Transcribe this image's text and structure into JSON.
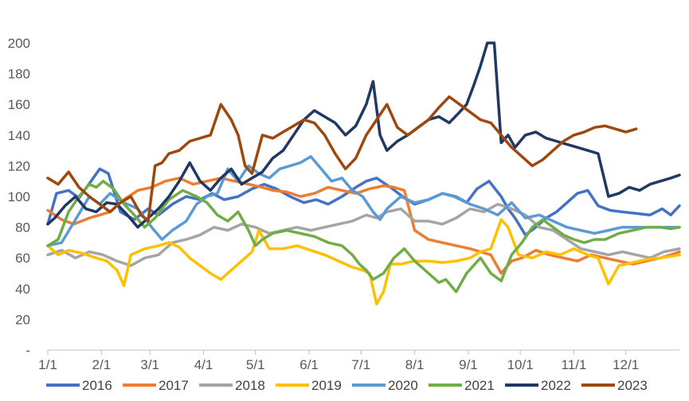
{
  "chart_data": {
    "type": "line",
    "title": "",
    "xlabel": "",
    "ylabel": "",
    "ylim": [
      0,
      200
    ],
    "y_ticks": [
      {
        "value": 0,
        "label": "-"
      },
      {
        "value": 20,
        "label": "20"
      },
      {
        "value": 40,
        "label": "40"
      },
      {
        "value": 60,
        "label": "60"
      },
      {
        "value": 80,
        "label": "80"
      },
      {
        "value": 100,
        "label": "100"
      },
      {
        "value": 120,
        "label": "120"
      },
      {
        "value": 140,
        "label": "140"
      },
      {
        "value": 160,
        "label": "160"
      },
      {
        "value": 180,
        "label": "180"
      },
      {
        "value": 200,
        "label": "200"
      }
    ],
    "x_range": [
      0,
      365
    ],
    "x_ticks": [
      {
        "value": 0,
        "label": "1/1"
      },
      {
        "value": 31,
        "label": "2/1"
      },
      {
        "value": 59,
        "label": "3/1"
      },
      {
        "value": 90,
        "label": "4/1"
      },
      {
        "value": 120,
        "label": "5/1"
      },
      {
        "value": 151,
        "label": "6/1"
      },
      {
        "value": 181,
        "label": "7/1"
      },
      {
        "value": 212,
        "label": "8/1"
      },
      {
        "value": 243,
        "label": "9/1"
      },
      {
        "value": 273,
        "label": "10/1"
      },
      {
        "value": 304,
        "label": "11/1"
      },
      {
        "value": 334,
        "label": "12/1"
      }
    ],
    "grid": false,
    "legend_position": "bottom",
    "series": [
      {
        "name": "2016",
        "color": "#4472C4",
        "x": [
          0,
          5,
          12,
          18,
          25,
          30,
          35,
          42,
          50,
          58,
          64,
          72,
          80,
          88,
          95,
          102,
          110,
          118,
          125,
          132,
          140,
          148,
          155,
          162,
          170,
          178,
          184,
          190,
          198,
          205,
          212,
          220,
          228,
          235,
          242,
          248,
          255,
          262,
          266,
          270,
          276,
          282,
          288,
          294,
          300,
          306,
          312,
          318,
          325,
          332,
          340,
          348,
          355,
          360,
          365
        ],
        "y": [
          82,
          102,
          104,
          99,
          110,
          118,
          115,
          90,
          85,
          92,
          88,
          95,
          100,
          98,
          102,
          98,
          100,
          105,
          108,
          105,
          100,
          96,
          98,
          95,
          100,
          106,
          110,
          112,
          106,
          100,
          95,
          98,
          102,
          100,
          96,
          105,
          110,
          100,
          92,
          86,
          75,
          80,
          86,
          90,
          96,
          102,
          104,
          94,
          91,
          90,
          89,
          88,
          92,
          88,
          94
        ]
      },
      {
        "name": "2017",
        "color": "#ED7D31",
        "x": [
          0,
          8,
          15,
          24,
          30,
          36,
          44,
          52,
          60,
          68,
          76,
          84,
          92,
          100,
          108,
          116,
          124,
          130,
          138,
          146,
          154,
          162,
          170,
          178,
          186,
          194,
          200,
          206,
          212,
          220,
          228,
          236,
          244,
          250,
          256,
          262,
          268,
          274,
          282,
          290,
          298,
          306,
          314,
          322,
          330,
          338,
          346,
          354,
          360,
          365
        ],
        "y": [
          91,
          85,
          82,
          86,
          88,
          90,
          98,
          104,
          106,
          110,
          112,
          108,
          110,
          112,
          110,
          108,
          106,
          104,
          103,
          100,
          102,
          106,
          104,
          102,
          105,
          107,
          106,
          104,
          78,
          72,
          70,
          68,
          66,
          64,
          62,
          50,
          58,
          60,
          65,
          62,
          60,
          58,
          62,
          60,
          58,
          56,
          58,
          60,
          62,
          64
        ]
      },
      {
        "name": "2018",
        "color": "#A5A5A5",
        "x": [
          0,
          8,
          16,
          24,
          32,
          40,
          48,
          56,
          64,
          72,
          80,
          88,
          96,
          104,
          112,
          120,
          128,
          136,
          144,
          152,
          160,
          168,
          176,
          184,
          190,
          196,
          204,
          212,
          220,
          228,
          236,
          244,
          252,
          260,
          268,
          276,
          284,
          292,
          300,
          308,
          316,
          324,
          332,
          340,
          348,
          356,
          365
        ],
        "y": [
          62,
          65,
          60,
          64,
          62,
          58,
          55,
          60,
          62,
          70,
          72,
          75,
          80,
          78,
          82,
          80,
          76,
          78,
          80,
          78,
          80,
          82,
          84,
          88,
          86,
          90,
          92,
          84,
          84,
          82,
          86,
          92,
          90,
          95,
          92,
          88,
          80,
          78,
          72,
          66,
          64,
          62,
          64,
          62,
          60,
          64,
          66
        ]
      },
      {
        "name": "2019",
        "color": "#FFC000",
        "x": [
          0,
          6,
          12,
          20,
          28,
          34,
          40,
          44,
          48,
          56,
          64,
          70,
          76,
          82,
          88,
          94,
          100,
          106,
          112,
          118,
          122,
          128,
          136,
          144,
          152,
          160,
          168,
          176,
          182,
          186,
          190,
          194,
          198,
          204,
          212,
          220,
          228,
          236,
          244,
          250,
          256,
          262,
          266,
          272,
          280,
          288,
          296,
          304,
          312,
          318,
          324,
          330,
          338,
          346,
          354,
          360,
          365
        ],
        "y": [
          68,
          62,
          65,
          63,
          60,
          58,
          52,
          42,
          62,
          66,
          68,
          70,
          67,
          60,
          55,
          50,
          46,
          52,
          58,
          64,
          78,
          66,
          66,
          68,
          65,
          62,
          58,
          54,
          52,
          50,
          30,
          38,
          56,
          56,
          58,
          58,
          57,
          58,
          60,
          64,
          66,
          85,
          80,
          62,
          60,
          64,
          62,
          66,
          62,
          60,
          43,
          55,
          57,
          59,
          60,
          61,
          62
        ]
      },
      {
        "name": "2020",
        "color": "#5B9BD5",
        "x": [
          0,
          8,
          16,
          24,
          30,
          36,
          44,
          52,
          60,
          66,
          72,
          80,
          86,
          92,
          98,
          104,
          110,
          116,
          122,
          128,
          134,
          140,
          146,
          152,
          158,
          164,
          170,
          176,
          182,
          188,
          192,
          196,
          204,
          212,
          220,
          228,
          236,
          244,
          252,
          260,
          268,
          276,
          284,
          292,
          300,
          308,
          316,
          324,
          332,
          340,
          348,
          356,
          365
        ],
        "y": [
          68,
          70,
          85,
          100,
          95,
          102,
          96,
          92,
          80,
          72,
          78,
          84,
          95,
          100,
          102,
          118,
          110,
          120,
          115,
          112,
          118,
          120,
          122,
          126,
          118,
          110,
          112,
          104,
          100,
          90,
          85,
          92,
          100,
          96,
          98,
          102,
          100,
          95,
          92,
          88,
          96,
          86,
          88,
          84,
          80,
          78,
          76,
          78,
          80,
          80,
          80,
          80,
          80
        ]
      },
      {
        "name": "2021",
        "color": "#70AD47",
        "x": [
          0,
          6,
          12,
          18,
          24,
          28,
          32,
          38,
          44,
          50,
          56,
          62,
          70,
          78,
          86,
          92,
          98,
          104,
          110,
          116,
          120,
          124,
          130,
          138,
          146,
          154,
          162,
          170,
          176,
          180,
          184,
          188,
          194,
          200,
          206,
          212,
          220,
          226,
          230,
          236,
          242,
          250,
          256,
          262,
          268,
          274,
          280,
          286,
          292,
          298,
          304,
          310,
          316,
          322,
          330,
          338,
          346,
          354,
          360,
          365
        ],
        "y": [
          68,
          72,
          90,
          100,
          108,
          106,
          110,
          105,
          95,
          88,
          80,
          86,
          98,
          104,
          100,
          96,
          88,
          84,
          90,
          78,
          68,
          72,
          76,
          78,
          76,
          74,
          70,
          68,
          62,
          56,
          52,
          46,
          50,
          60,
          66,
          58,
          50,
          44,
          46,
          38,
          50,
          60,
          50,
          45,
          62,
          70,
          80,
          85,
          80,
          75,
          72,
          70,
          72,
          72,
          76,
          78,
          80,
          80,
          79,
          80
        ]
      },
      {
        "name": "2022",
        "color": "#203864",
        "x": [
          0,
          4,
          10,
          16,
          22,
          28,
          34,
          40,
          46,
          52,
          58,
          64,
          70,
          76,
          82,
          88,
          94,
          100,
          106,
          112,
          118,
          124,
          130,
          136,
          142,
          148,
          154,
          160,
          166,
          172,
          178,
          184,
          188,
          192,
          196,
          202,
          208,
          214,
          220,
          226,
          232,
          238,
          242,
          246,
          250,
          254,
          258,
          262,
          266,
          270,
          276,
          282,
          288,
          294,
          300,
          306,
          312,
          318,
          324,
          330,
          336,
          342,
          348,
          354,
          360,
          365
        ],
        "y": [
          82,
          86,
          94,
          100,
          92,
          90,
          96,
          95,
          88,
          80,
          86,
          92,
          100,
          110,
          122,
          110,
          104,
          112,
          118,
          108,
          112,
          116,
          125,
          130,
          140,
          150,
          156,
          152,
          148,
          140,
          146,
          160,
          175,
          140,
          130,
          136,
          140,
          145,
          150,
          152,
          148,
          155,
          160,
          172,
          185,
          200,
          210,
          135,
          140,
          132,
          140,
          142,
          138,
          136,
          134,
          132,
          130,
          128,
          100,
          102,
          106,
          104,
          108,
          110,
          112,
          114
        ]
      },
      {
        "name": "2023",
        "color": "#9E480E",
        "x": [
          0,
          6,
          12,
          18,
          24,
          30,
          36,
          42,
          48,
          54,
          58,
          62,
          66,
          70,
          76,
          82,
          88,
          94,
          100,
          106,
          110,
          114,
          118,
          124,
          130,
          136,
          142,
          148,
          154,
          160,
          166,
          172,
          178,
          184,
          190,
          196,
          202,
          208,
          214,
          220,
          226,
          232,
          238,
          244,
          250,
          256,
          262,
          268,
          274,
          280,
          286,
          292,
          298,
          304,
          310,
          316,
          322,
          328,
          334,
          340
        ],
        "y": [
          112,
          108,
          116,
          106,
          100,
          95,
          90,
          96,
          100,
          88,
          84,
          120,
          122,
          128,
          130,
          136,
          138,
          140,
          160,
          150,
          140,
          120,
          115,
          140,
          138,
          142,
          146,
          150,
          148,
          140,
          128,
          118,
          125,
          140,
          150,
          160,
          145,
          140,
          145,
          150,
          158,
          165,
          160,
          155,
          150,
          148,
          140,
          132,
          126,
          120,
          124,
          130,
          136,
          140,
          142,
          145,
          146,
          144,
          142,
          144
        ]
      }
    ]
  }
}
